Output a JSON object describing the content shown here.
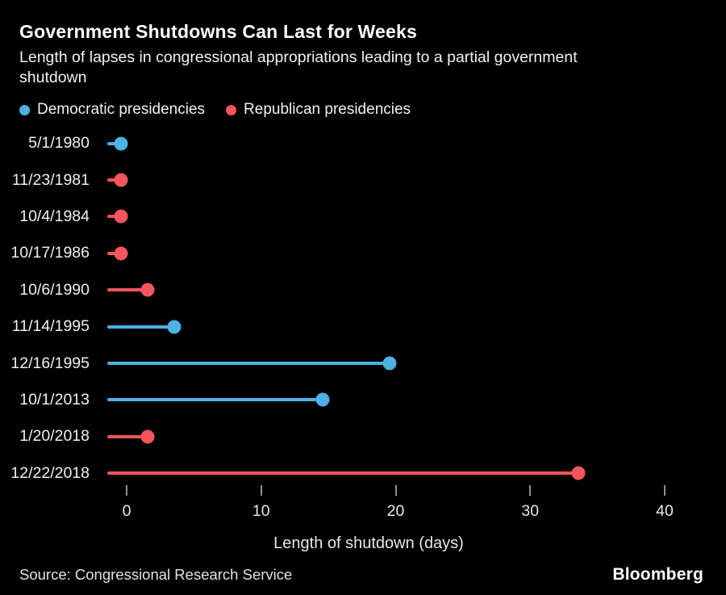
{
  "header": {
    "title": "Government Shutdowns Can Last for Weeks",
    "subtitle": "Length of lapses in congressional appropriations leading to a partial government shutdown"
  },
  "legend": [
    {
      "label": "Democratic presidencies",
      "party": "dem",
      "color": "#4db1e4"
    },
    {
      "label": "Republican presidencies",
      "party": "rep",
      "color": "#f4555e"
    }
  ],
  "colors": {
    "dem": "#4db1e4",
    "rep": "#f4555e",
    "background": "#000000",
    "tick": "#8f8f8f"
  },
  "chart_data": {
    "type": "bar",
    "subtype": "lollipop",
    "orientation": "horizontal",
    "title": "Government Shutdowns Can Last for Weeks",
    "xlabel": "Length of shutdown (days)",
    "xticks": [
      0,
      10,
      20,
      30,
      40
    ],
    "xlim": [
      0,
      42
    ],
    "grid": false,
    "legend_position": "top-left",
    "categories": [
      "5/1/1980",
      "11/23/1981",
      "10/4/1984",
      "10/17/1986",
      "10/6/1990",
      "11/14/1995",
      "12/16/1995",
      "10/1/2013",
      "1/20/2018",
      "12/22/2018"
    ],
    "values": [
      1,
      1,
      1,
      1,
      3,
      5,
      21,
      16,
      3,
      35
    ],
    "points": [
      {
        "date": "5/1/1980",
        "days": 1,
        "party": "dem"
      },
      {
        "date": "11/23/1981",
        "days": 1,
        "party": "rep"
      },
      {
        "date": "10/4/1984",
        "days": 1,
        "party": "rep"
      },
      {
        "date": "10/17/1986",
        "days": 1,
        "party": "rep"
      },
      {
        "date": "10/6/1990",
        "days": 3,
        "party": "rep"
      },
      {
        "date": "11/14/1995",
        "days": 5,
        "party": "dem"
      },
      {
        "date": "12/16/1995",
        "days": 21,
        "party": "dem"
      },
      {
        "date": "10/1/2013",
        "days": 16,
        "party": "dem"
      },
      {
        "date": "1/20/2018",
        "days": 3,
        "party": "rep"
      },
      {
        "date": "12/22/2018",
        "days": 35,
        "party": "rep"
      }
    ]
  },
  "footer": {
    "source": "Source: Congressional Research Service",
    "brand": "Bloomberg"
  }
}
